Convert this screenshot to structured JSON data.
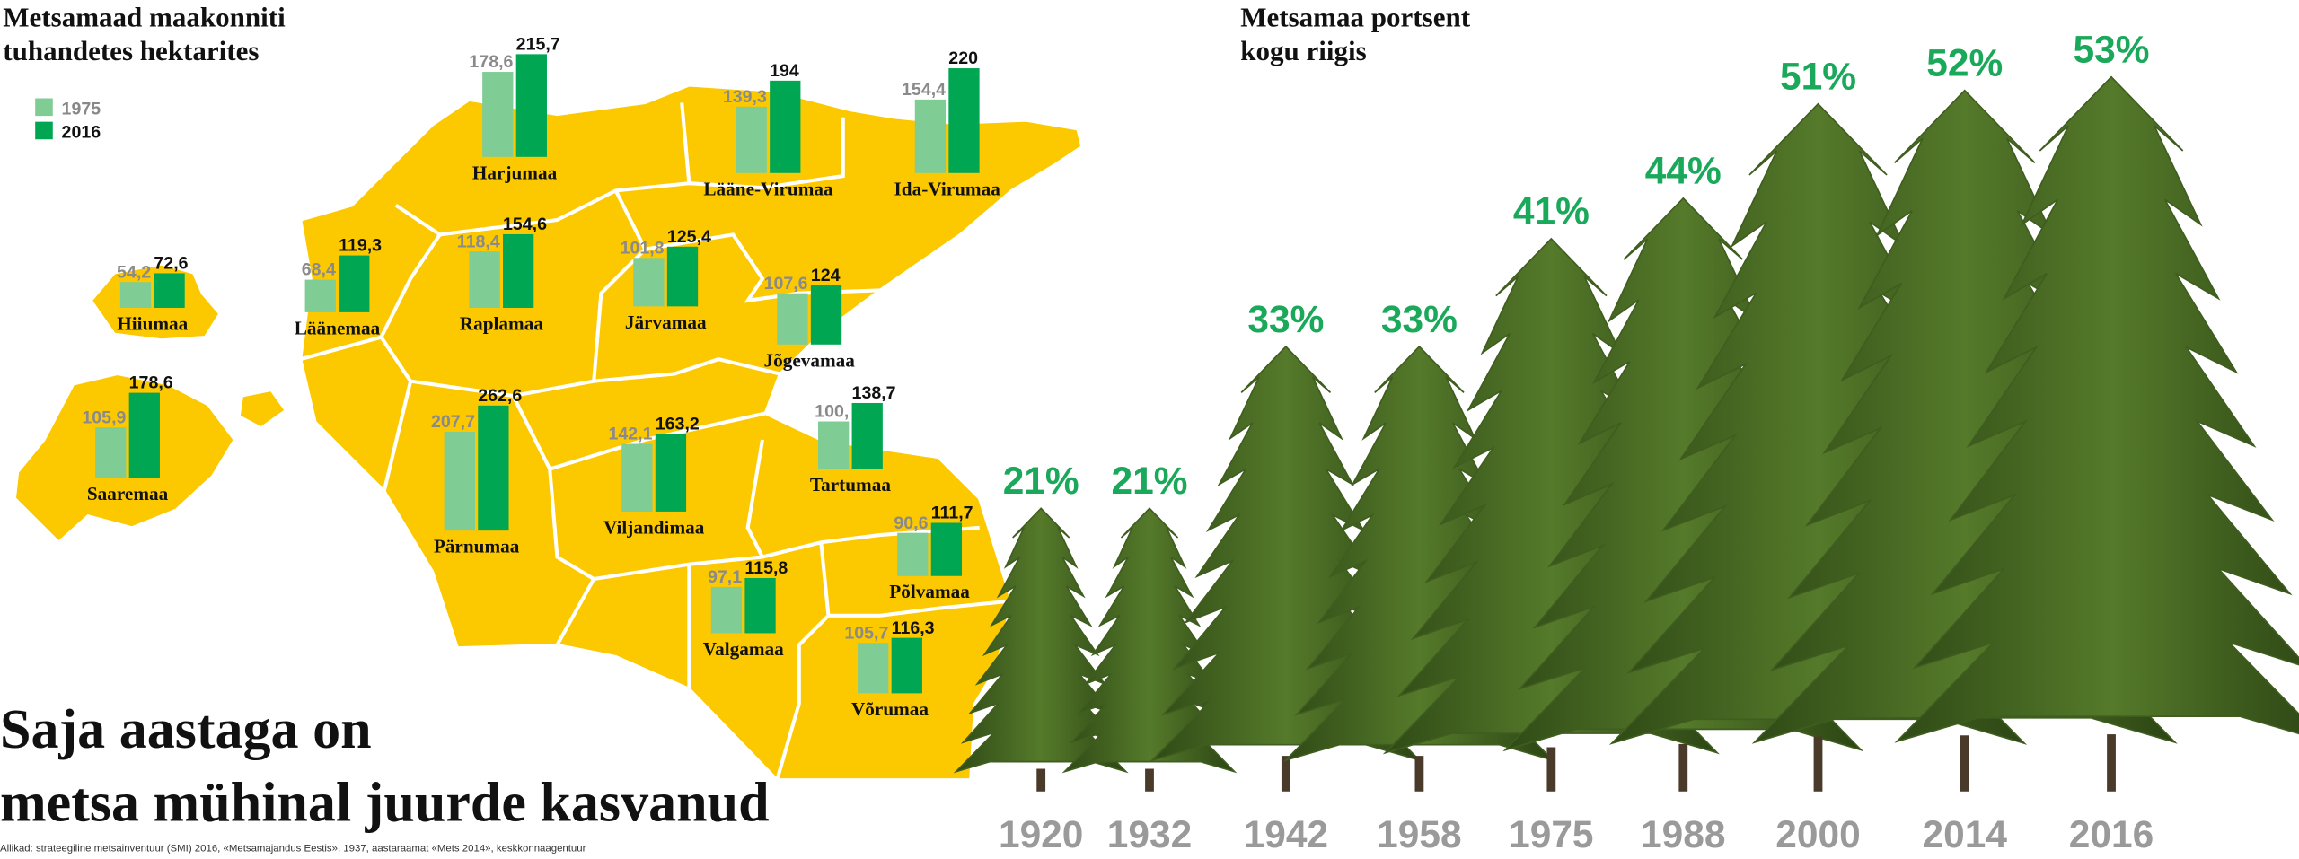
{
  "headline": [
    "Saja aastaga on",
    "metsa mühinal juurde kasvanud"
  ],
  "source": "Allikad: strateegiline metsainventuur (SMI) 2016, «Metsamajandus Eestis», 1937, aastaraamat «Mets 2014», keskkonnaagentuur",
  "chart_data": [
    {
      "type": "bar",
      "title": [
        "Metsamaad maakonniti",
        "tuhandetes hektarites"
      ],
      "categories": [
        "Harjumaa",
        "Lääne-Virumaa",
        "Ida-Virumaa",
        "Hiiumaa",
        "Läänemaa",
        "Raplamaa",
        "Järvamaa",
        "Jõgevamaa",
        "Saaremaa",
        "Pärnumaa",
        "Viljandimaa",
        "Tartumaa",
        "Põlvamaa",
        "Valgamaa",
        "Võrumaa"
      ],
      "series": [
        {
          "name": "1975",
          "color": "#7fcc95",
          "values": [
            178.6,
            139.3,
            154.4,
            54.2,
            68.4,
            118.4,
            101.8,
            107.6,
            105.9,
            207.7,
            142.1,
            100,
            90.6,
            97.1,
            105.7
          ],
          "value_labels": [
            "178,6",
            "139,3",
            "154,4",
            "54,2",
            "68,4",
            "118,4",
            "101,8",
            "107,6",
            "105,9",
            "207,7",
            "142,1",
            "100,",
            "90,6",
            "97,1",
            "105,7"
          ]
        },
        {
          "name": "2016",
          "color": "#00a651",
          "values": [
            215.7,
            194,
            220,
            72.6,
            119.3,
            154.6,
            125.4,
            124,
            178.6,
            262.6,
            163.2,
            138.7,
            111.7,
            115.8,
            116.3
          ],
          "value_labels": [
            "215,7",
            "194",
            "220",
            "72,6",
            "119,3",
            "154,6",
            "125,4",
            "124",
            "178,6",
            "262,6",
            "163,2",
            "138,7",
            "111,7",
            "115,8",
            "116,3"
          ]
        }
      ]
    },
    {
      "type": "pictogram",
      "title": [
        "Metsamaa portsent",
        "kogu riigis"
      ],
      "categories": [
        "1920",
        "1932",
        "1942",
        "1958",
        "1975",
        "1988",
        "2000",
        "2014",
        "2016"
      ],
      "values": [
        21,
        21,
        33,
        33,
        41,
        44,
        51,
        52,
        53
      ],
      "value_labels": [
        "21%",
        "21%",
        "33%",
        "33%",
        "41%",
        "44%",
        "51%",
        "52%",
        "53%"
      ],
      "color": "#3f5d1f"
    }
  ]
}
